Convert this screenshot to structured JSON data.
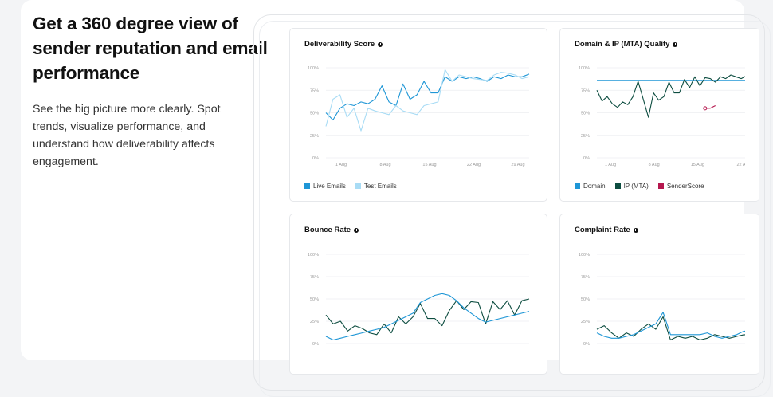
{
  "intro": {
    "headline": "Get a 360 degree view of sender reputation and email performance",
    "description": "See the big picture more clearly. Spot trends, visualize performance, and understand how deliverability affects engagement."
  },
  "colors": {
    "blue": "#1e96d6",
    "light_blue": "#a9dcf5",
    "dark_green": "#0d4d40",
    "crimson": "#b5174e"
  },
  "chart_data": [
    {
      "id": "deliverability",
      "type": "line",
      "title": "Deliverability Score",
      "y_ticks": [
        "100%",
        "75%",
        "50%",
        "25%",
        "0%"
      ],
      "x_ticks": [
        "1 Aug",
        "8 Aug",
        "15 Aug",
        "22 Aug",
        "29 Aug"
      ],
      "ylim": [
        0,
        100
      ],
      "legend": [
        "Live Emails",
        "Test Emails"
      ],
      "series": [
        {
          "name": "Live Emails",
          "color": "#1e96d6",
          "values": [
            50,
            42,
            55,
            60,
            58,
            62,
            60,
            65,
            80,
            62,
            58,
            82,
            65,
            70,
            85,
            72,
            72,
            90,
            85,
            90,
            88,
            90,
            88,
            85,
            90,
            88,
            92,
            90,
            90,
            93
          ]
        },
        {
          "name": "Test Emails",
          "color": "#a9dcf5",
          "values": [
            35,
            65,
            70,
            45,
            55,
            30,
            55,
            52,
            50,
            48,
            58,
            52,
            50,
            48,
            58,
            60,
            62,
            98,
            85,
            92,
            90,
            88,
            87,
            86,
            92,
            95,
            94,
            92,
            88,
            90
          ]
        }
      ]
    },
    {
      "id": "domain",
      "type": "line",
      "title": "Domain & IP (MTA) Quality",
      "y_ticks": [
        "100%",
        "75%",
        "50%",
        "25%",
        "0%"
      ],
      "x_ticks": [
        "1 Aug",
        "8 Aug",
        "15 Aug",
        "22 A"
      ],
      "ylim": [
        0,
        100
      ],
      "legend": [
        "Domain",
        "IP (MTA)",
        "SenderScore"
      ],
      "series": [
        {
          "name": "Domain",
          "color": "#1e96d6",
          "values": [
            86,
            86,
            86,
            86,
            86,
            86,
            86,
            86,
            86,
            86,
            86,
            86,
            86,
            86,
            86,
            86,
            86,
            86,
            86,
            86,
            86,
            86,
            86,
            86,
            86,
            86,
            86,
            86,
            86,
            86,
            86
          ]
        },
        {
          "name": "IP (MTA)",
          "color": "#0d4d40",
          "values": [
            75,
            63,
            68,
            60,
            56,
            62,
            59,
            68,
            85,
            65,
            45,
            72,
            64,
            68,
            84,
            72,
            72,
            87,
            78,
            90,
            80,
            89,
            88,
            84,
            90,
            88,
            92,
            90,
            88,
            91,
            90
          ]
        },
        {
          "name": "SenderScore",
          "color": "#b5174e",
          "values": [
            null,
            null,
            null,
            null,
            null,
            null,
            null,
            null,
            null,
            null,
            null,
            null,
            null,
            null,
            null,
            null,
            null,
            null,
            null,
            null,
            null,
            55,
            55,
            58,
            null,
            null,
            null,
            null,
            null,
            null,
            null
          ]
        }
      ]
    },
    {
      "id": "bounce",
      "type": "line",
      "title": "Bounce Rate",
      "y_ticks": [
        "100%",
        "75%",
        "50%",
        "25%",
        "0%"
      ],
      "x_ticks": [],
      "ylim": [
        0,
        100
      ],
      "legend": [],
      "series": [
        {
          "name": "s1",
          "color": "#0d4d40",
          "values": [
            32,
            22,
            25,
            14,
            20,
            17,
            12,
            10,
            22,
            12,
            30,
            22,
            30,
            45,
            28,
            28,
            20,
            37,
            48,
            38,
            47,
            46,
            22,
            47,
            38,
            48,
            32,
            48,
            50
          ]
        },
        {
          "name": "s2",
          "color": "#1e96d6",
          "values": [
            8,
            4,
            6,
            8,
            10,
            12,
            14,
            16,
            18,
            22,
            26,
            30,
            34,
            46,
            50,
            54,
            56,
            54,
            48,
            40,
            34,
            28,
            24,
            26,
            28,
            30,
            32,
            34,
            36
          ]
        }
      ]
    },
    {
      "id": "complaint",
      "type": "line",
      "title": "Complaint Rate",
      "y_ticks": [
        "100%",
        "75%",
        "50%",
        "25%",
        "0%"
      ],
      "x_ticks": [],
      "ylim": [
        0,
        100
      ],
      "legend": [],
      "series": [
        {
          "name": "s1",
          "color": "#0d4d40",
          "values": [
            16,
            20,
            12,
            6,
            12,
            8,
            16,
            22,
            16,
            30,
            4,
            8,
            6,
            8,
            4,
            6,
            10,
            8,
            6,
            8,
            10,
            8
          ]
        },
        {
          "name": "s2",
          "color": "#1e96d6",
          "values": [
            12,
            8,
            6,
            6,
            8,
            10,
            14,
            18,
            22,
            35,
            10,
            10,
            10,
            10,
            10,
            12,
            8,
            6,
            8,
            10,
            14,
            12
          ]
        }
      ]
    }
  ]
}
